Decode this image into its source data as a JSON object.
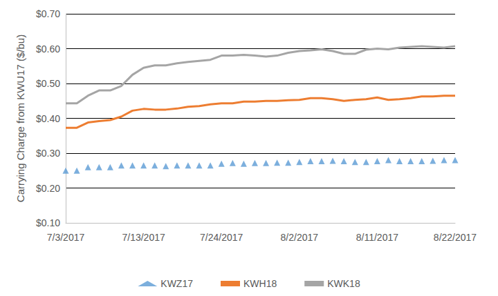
{
  "chart_data": {
    "type": "line",
    "y_label": "Carrying Charge from KWU17 ($/bu)",
    "categories": [
      "7/3/2017",
      null,
      null,
      null,
      null,
      null,
      null,
      "7/13/2017",
      null,
      null,
      null,
      null,
      null,
      null,
      "7/24/2017",
      null,
      null,
      null,
      null,
      null,
      null,
      "8/2/2017",
      null,
      null,
      null,
      null,
      null,
      null,
      "8/11/2017",
      null,
      null,
      null,
      null,
      null,
      null,
      "8/22/2017"
    ],
    "series": [
      {
        "name": "KWZ17",
        "type": "scatter",
        "marker": "triangle",
        "color": "#5b9bd5",
        "values": [
          0.25,
          0.25,
          0.26,
          0.26,
          0.26,
          0.265,
          0.265,
          0.265,
          0.265,
          0.263,
          0.265,
          0.265,
          0.265,
          0.265,
          0.27,
          0.272,
          0.27,
          0.272,
          0.272,
          0.273,
          0.273,
          0.275,
          0.277,
          0.277,
          0.278,
          0.277,
          0.275,
          0.275,
          0.277,
          0.28,
          0.277,
          0.277,
          0.277,
          0.278,
          0.28,
          0.28
        ]
      },
      {
        "name": "KWH18",
        "type": "line",
        "color": "#ed7d31",
        "values": [
          0.373,
          0.373,
          0.388,
          0.392,
          0.395,
          0.405,
          0.422,
          0.427,
          0.425,
          0.425,
          0.428,
          0.433,
          0.435,
          0.44,
          0.443,
          0.443,
          0.448,
          0.448,
          0.45,
          0.45,
          0.452,
          0.453,
          0.458,
          0.458,
          0.455,
          0.45,
          0.453,
          0.455,
          0.46,
          0.453,
          0.455,
          0.458,
          0.463,
          0.463,
          0.465,
          0.465
        ]
      },
      {
        "name": "KWK18",
        "type": "line",
        "color": "#a5a5a5",
        "values": [
          0.443,
          0.443,
          0.465,
          0.48,
          0.48,
          0.493,
          0.525,
          0.545,
          0.552,
          0.552,
          0.558,
          0.562,
          0.565,
          0.568,
          0.58,
          0.58,
          0.582,
          0.58,
          0.577,
          0.58,
          0.588,
          0.593,
          0.595,
          0.598,
          0.593,
          0.585,
          0.585,
          0.597,
          0.6,
          0.598,
          0.603,
          0.605,
          0.607,
          0.605,
          0.603,
          0.607
        ]
      }
    ],
    "ylim": [
      0.1,
      0.7
    ],
    "yticks": [
      {
        "value": 0.1,
        "label": "$0.10"
      },
      {
        "value": 0.2,
        "label": "$0.20"
      },
      {
        "value": 0.3,
        "label": "$0.30"
      },
      {
        "value": 0.4,
        "label": "$0.40"
      },
      {
        "value": 0.5,
        "label": "$0.50"
      },
      {
        "value": 0.6,
        "label": "$0.60"
      },
      {
        "value": 0.7,
        "label": "$0.70"
      }
    ],
    "grid": true,
    "legend": "bottom"
  }
}
